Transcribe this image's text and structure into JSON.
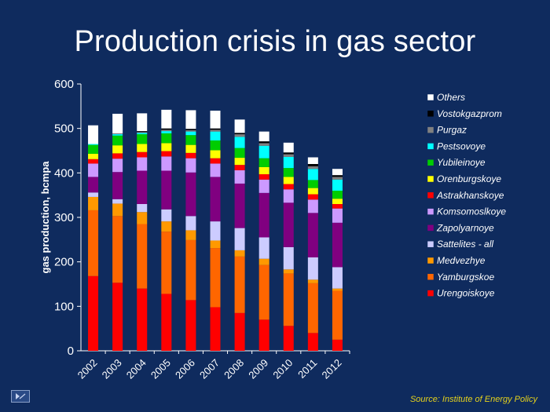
{
  "title": "Production crisis in gas sector",
  "source": "Source: Institute of Energy Policy",
  "chart_data": {
    "type": "bar",
    "stacked": true,
    "title": "Production crisis in gas sector",
    "ylabel": "gas production, bcmpa",
    "xlabel": "",
    "ylim": [
      0,
      600
    ],
    "yticks": [
      0,
      100,
      200,
      300,
      400,
      500,
      600
    ],
    "legend_position": "right",
    "categories": [
      "2002",
      "2003",
      "2004",
      "2005",
      "2006",
      "2007",
      "2008",
      "2009",
      "2010",
      "2011",
      "2012"
    ],
    "series": [
      {
        "name": "Urengoiskoye",
        "color": "#ff0000",
        "values": [
          168,
          153,
          140,
          128,
          114,
          98,
          85,
          70,
          56,
          40,
          25
        ]
      },
      {
        "name": "Yamburgskoe",
        "color": "#ff6600",
        "values": [
          148,
          150,
          145,
          140,
          135,
          133,
          127,
          123,
          118,
          112,
          110
        ]
      },
      {
        "name": "Medvezhye",
        "color": "#ff9900",
        "values": [
          30,
          28,
          27,
          23,
          22,
          17,
          14,
          14,
          9,
          8,
          5
        ]
      },
      {
        "name": "Sattelites - all",
        "color": "#ccccff",
        "values": [
          10,
          10,
          18,
          27,
          32,
          43,
          50,
          48,
          50,
          50,
          48
        ]
      },
      {
        "name": "Zapolyarnoye",
        "color": "#800080",
        "values": [
          35,
          61,
          75,
          87,
          98,
          100,
          100,
          100,
          100,
          100,
          100
        ]
      },
      {
        "name": "Komsomoslkoye",
        "color": "#cc99ff",
        "values": [
          30,
          30,
          30,
          32,
          32,
          30,
          30,
          30,
          30,
          30,
          32
        ]
      },
      {
        "name": "Astrakhanskoye",
        "color": "#ff0000",
        "values": [
          10,
          12,
          12,
          12,
          12,
          12,
          12,
          12,
          12,
          12,
          10
        ]
      },
      {
        "name": "Orenburgskoye",
        "color": "#ffff00",
        "values": [
          12,
          18,
          18,
          18,
          18,
          18,
          16,
          16,
          16,
          14,
          12
        ]
      },
      {
        "name": "Yubileinoye",
        "color": "#00cc00",
        "values": [
          20,
          22,
          22,
          22,
          22,
          22,
          22,
          20,
          20,
          18,
          18
        ]
      },
      {
        "name": "Pestsovoye",
        "color": "#00ffff",
        "values": [
          2,
          3,
          3,
          5,
          8,
          20,
          25,
          28,
          25,
          25,
          25
        ]
      },
      {
        "name": "Purgaz",
        "color": "#808080",
        "values": [
          0,
          2,
          2,
          3,
          3,
          4,
          6,
          6,
          6,
          6,
          6
        ]
      },
      {
        "name": "Vostokgazprom",
        "color": "#000000",
        "values": [
          0,
          0,
          2,
          3,
          3,
          3,
          3,
          4,
          4,
          5,
          4
        ]
      },
      {
        "name": "Others",
        "color": "#ffffff",
        "values": [
          42,
          44,
          40,
          42,
          42,
          40,
          30,
          22,
          22,
          15,
          14
        ]
      }
    ]
  }
}
